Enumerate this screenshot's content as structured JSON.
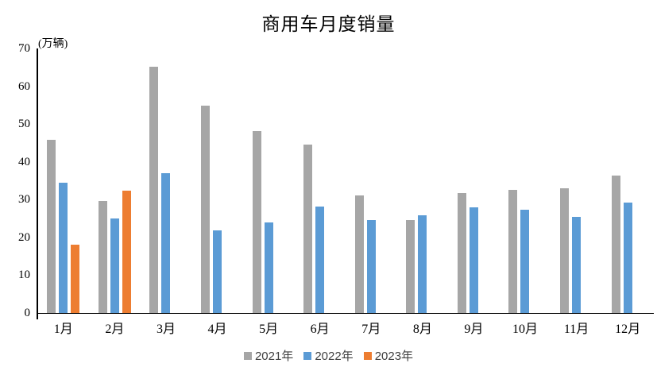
{
  "title": "商用车月度销量",
  "chart_data": {
    "type": "bar",
    "title": "商用车月度销量",
    "ylabel": "(万辆)",
    "xlabel": "",
    "categories": [
      "1月",
      "2月",
      "3月",
      "4月",
      "5月",
      "6月",
      "7月",
      "8月",
      "9月",
      "10月",
      "11月",
      "12月"
    ],
    "series": [
      {
        "name": "2021年",
        "color": "#A6A6A6",
        "values": [
          45.8,
          29.7,
          65.2,
          54.9,
          48.1,
          44.5,
          31.2,
          24.7,
          31.8,
          32.6,
          33.0,
          36.4
        ]
      },
      {
        "name": "2022年",
        "color": "#5B9BD5",
        "values": [
          34.5,
          25.0,
          37.0,
          21.8,
          23.9,
          28.1,
          24.6,
          25.9,
          28.0,
          27.3,
          25.5,
          29.2
        ]
      },
      {
        "name": "2023年",
        "color": "#ED7D31",
        "values": [
          18.0,
          32.4,
          null,
          null,
          null,
          null,
          null,
          null,
          null,
          null,
          null,
          null
        ]
      }
    ],
    "ylim": [
      0,
      70
    ],
    "yticks": [
      0,
      10,
      20,
      30,
      40,
      50,
      60,
      70
    ],
    "grid": false,
    "legend_position": "bottom",
    "axis_color": "#000000",
    "text_color": "#000000"
  }
}
